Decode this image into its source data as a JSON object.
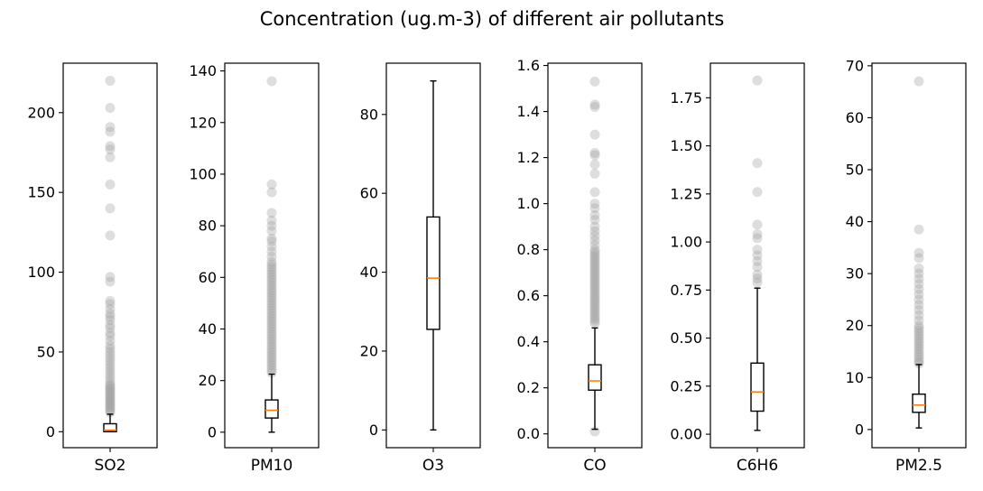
{
  "figure": {
    "title": "Concentration (ug.m-3) of different air pollutants"
  },
  "colors": {
    "box": "#000000",
    "median": "#ff7f0e",
    "outlier": "#a0a0a0",
    "background": "#ffffff"
  },
  "chart_data": [
    {
      "type": "box",
      "category": "SO2",
      "ylim": [
        -10,
        231
      ],
      "yticks": [
        0,
        50,
        100,
        150,
        200
      ],
      "tick_labels": [
        "0",
        "50",
        "100",
        "150",
        "200"
      ],
      "box": {
        "whisker_low": 0,
        "q1": 0,
        "median": 1,
        "q3": 5,
        "whisker_high": 11
      },
      "outliers": [
        12,
        13,
        14,
        15,
        16,
        17,
        18,
        19,
        20,
        21,
        22,
        23,
        24,
        25,
        26,
        27,
        28,
        29,
        30,
        32,
        34,
        36,
        38,
        40,
        42,
        44,
        46,
        48,
        50,
        52,
        54,
        57,
        60,
        62,
        65,
        67,
        70,
        72,
        74,
        77,
        80,
        82,
        94,
        97,
        123,
        140,
        155,
        172,
        177,
        179,
        188,
        191,
        203,
        220
      ]
    },
    {
      "type": "box",
      "category": "PM10",
      "ylim": [
        -6,
        143
      ],
      "yticks": [
        0,
        20,
        40,
        60,
        80,
        100,
        120,
        140
      ],
      "tick_labels": [
        "0",
        "20",
        "40",
        "60",
        "80",
        "100",
        "120",
        "140"
      ],
      "box": {
        "whisker_low": 0,
        "q1": 5.5,
        "median": 8.5,
        "q3": 12.5,
        "whisker_high": 22.5
      },
      "outliers": [
        23,
        24,
        25,
        26,
        27,
        28,
        29,
        30,
        31,
        32,
        33,
        34,
        35,
        36,
        37,
        38,
        39,
        40,
        41,
        42,
        43,
        44,
        45,
        46,
        47,
        48,
        49,
        50,
        51,
        52,
        53,
        54,
        55,
        56,
        57,
        58,
        59,
        60,
        61,
        62,
        63,
        64,
        65,
        66,
        68,
        70,
        72,
        74,
        75,
        78,
        80,
        82,
        85,
        93,
        96,
        136
      ]
    },
    {
      "type": "box",
      "category": "O3",
      "ylim": [
        -4.5,
        93
      ],
      "yticks": [
        0,
        20,
        40,
        60,
        80
      ],
      "tick_labels": [
        "0",
        "20",
        "40",
        "60",
        "80"
      ],
      "box": {
        "whisker_low": 0,
        "q1": 25.5,
        "median": 38.5,
        "q3": 54,
        "whisker_high": 88.5
      },
      "outliers": []
    },
    {
      "type": "box",
      "category": "CO",
      "ylim": [
        -0.06,
        1.61
      ],
      "yticks": [
        0.0,
        0.2,
        0.4,
        0.6,
        0.8,
        1.0,
        1.2,
        1.4,
        1.6
      ],
      "tick_labels": [
        "0.0",
        "0.2",
        "0.4",
        "0.6",
        "0.8",
        "1.0",
        "1.2",
        "1.4",
        "1.6"
      ],
      "box": {
        "whisker_low": 0.02,
        "q1": 0.19,
        "median": 0.23,
        "q3": 0.3,
        "whisker_high": 0.46
      },
      "outliers": [
        0.01,
        0.48,
        0.49,
        0.5,
        0.51,
        0.52,
        0.53,
        0.54,
        0.55,
        0.56,
        0.57,
        0.58,
        0.59,
        0.6,
        0.61,
        0.62,
        0.63,
        0.64,
        0.65,
        0.66,
        0.67,
        0.68,
        0.69,
        0.7,
        0.71,
        0.72,
        0.73,
        0.74,
        0.75,
        0.76,
        0.77,
        0.78,
        0.79,
        0.8,
        0.82,
        0.84,
        0.86,
        0.88,
        0.9,
        0.93,
        0.95,
        0.98,
        1.0,
        1.05,
        1.13,
        1.17,
        1.21,
        1.22,
        1.3,
        1.42,
        1.43,
        1.53
      ]
    },
    {
      "type": "box",
      "category": "C6H6",
      "ylim": [
        -0.07,
        1.93
      ],
      "yticks": [
        0.0,
        0.25,
        0.5,
        0.75,
        1.0,
        1.25,
        1.5,
        1.75
      ],
      "tick_labels": [
        "0.00",
        "0.25",
        "0.50",
        "0.75",
        "1.00",
        "1.25",
        "1.50",
        "1.75"
      ],
      "box": {
        "whisker_low": 0.02,
        "q1": 0.12,
        "median": 0.22,
        "q3": 0.37,
        "whisker_high": 0.76
      },
      "outliers": [
        0.79,
        0.81,
        0.83,
        0.87,
        0.9,
        0.93,
        0.96,
        1.02,
        1.04,
        1.09,
        1.26,
        1.41,
        1.84
      ]
    },
    {
      "type": "box",
      "category": "PM2.5",
      "ylim": [
        -3.5,
        70.5
      ],
      "yticks": [
        0,
        10,
        20,
        30,
        40,
        50,
        60,
        70
      ],
      "tick_labels": [
        "0",
        "10",
        "20",
        "30",
        "40",
        "50",
        "60",
        "70"
      ],
      "box": {
        "whisker_low": 0.3,
        "q1": 3.3,
        "median": 4.7,
        "q3": 6.8,
        "whisker_high": 12.5
      },
      "outliers": [
        12.7,
        13,
        13.5,
        14,
        14.5,
        15,
        15.5,
        16,
        16.5,
        17,
        17.5,
        18,
        18.5,
        19,
        19.5,
        20,
        21,
        22,
        23,
        24,
        25,
        26,
        27,
        28,
        29,
        30,
        31,
        33,
        34,
        38.5,
        67
      ]
    }
  ]
}
